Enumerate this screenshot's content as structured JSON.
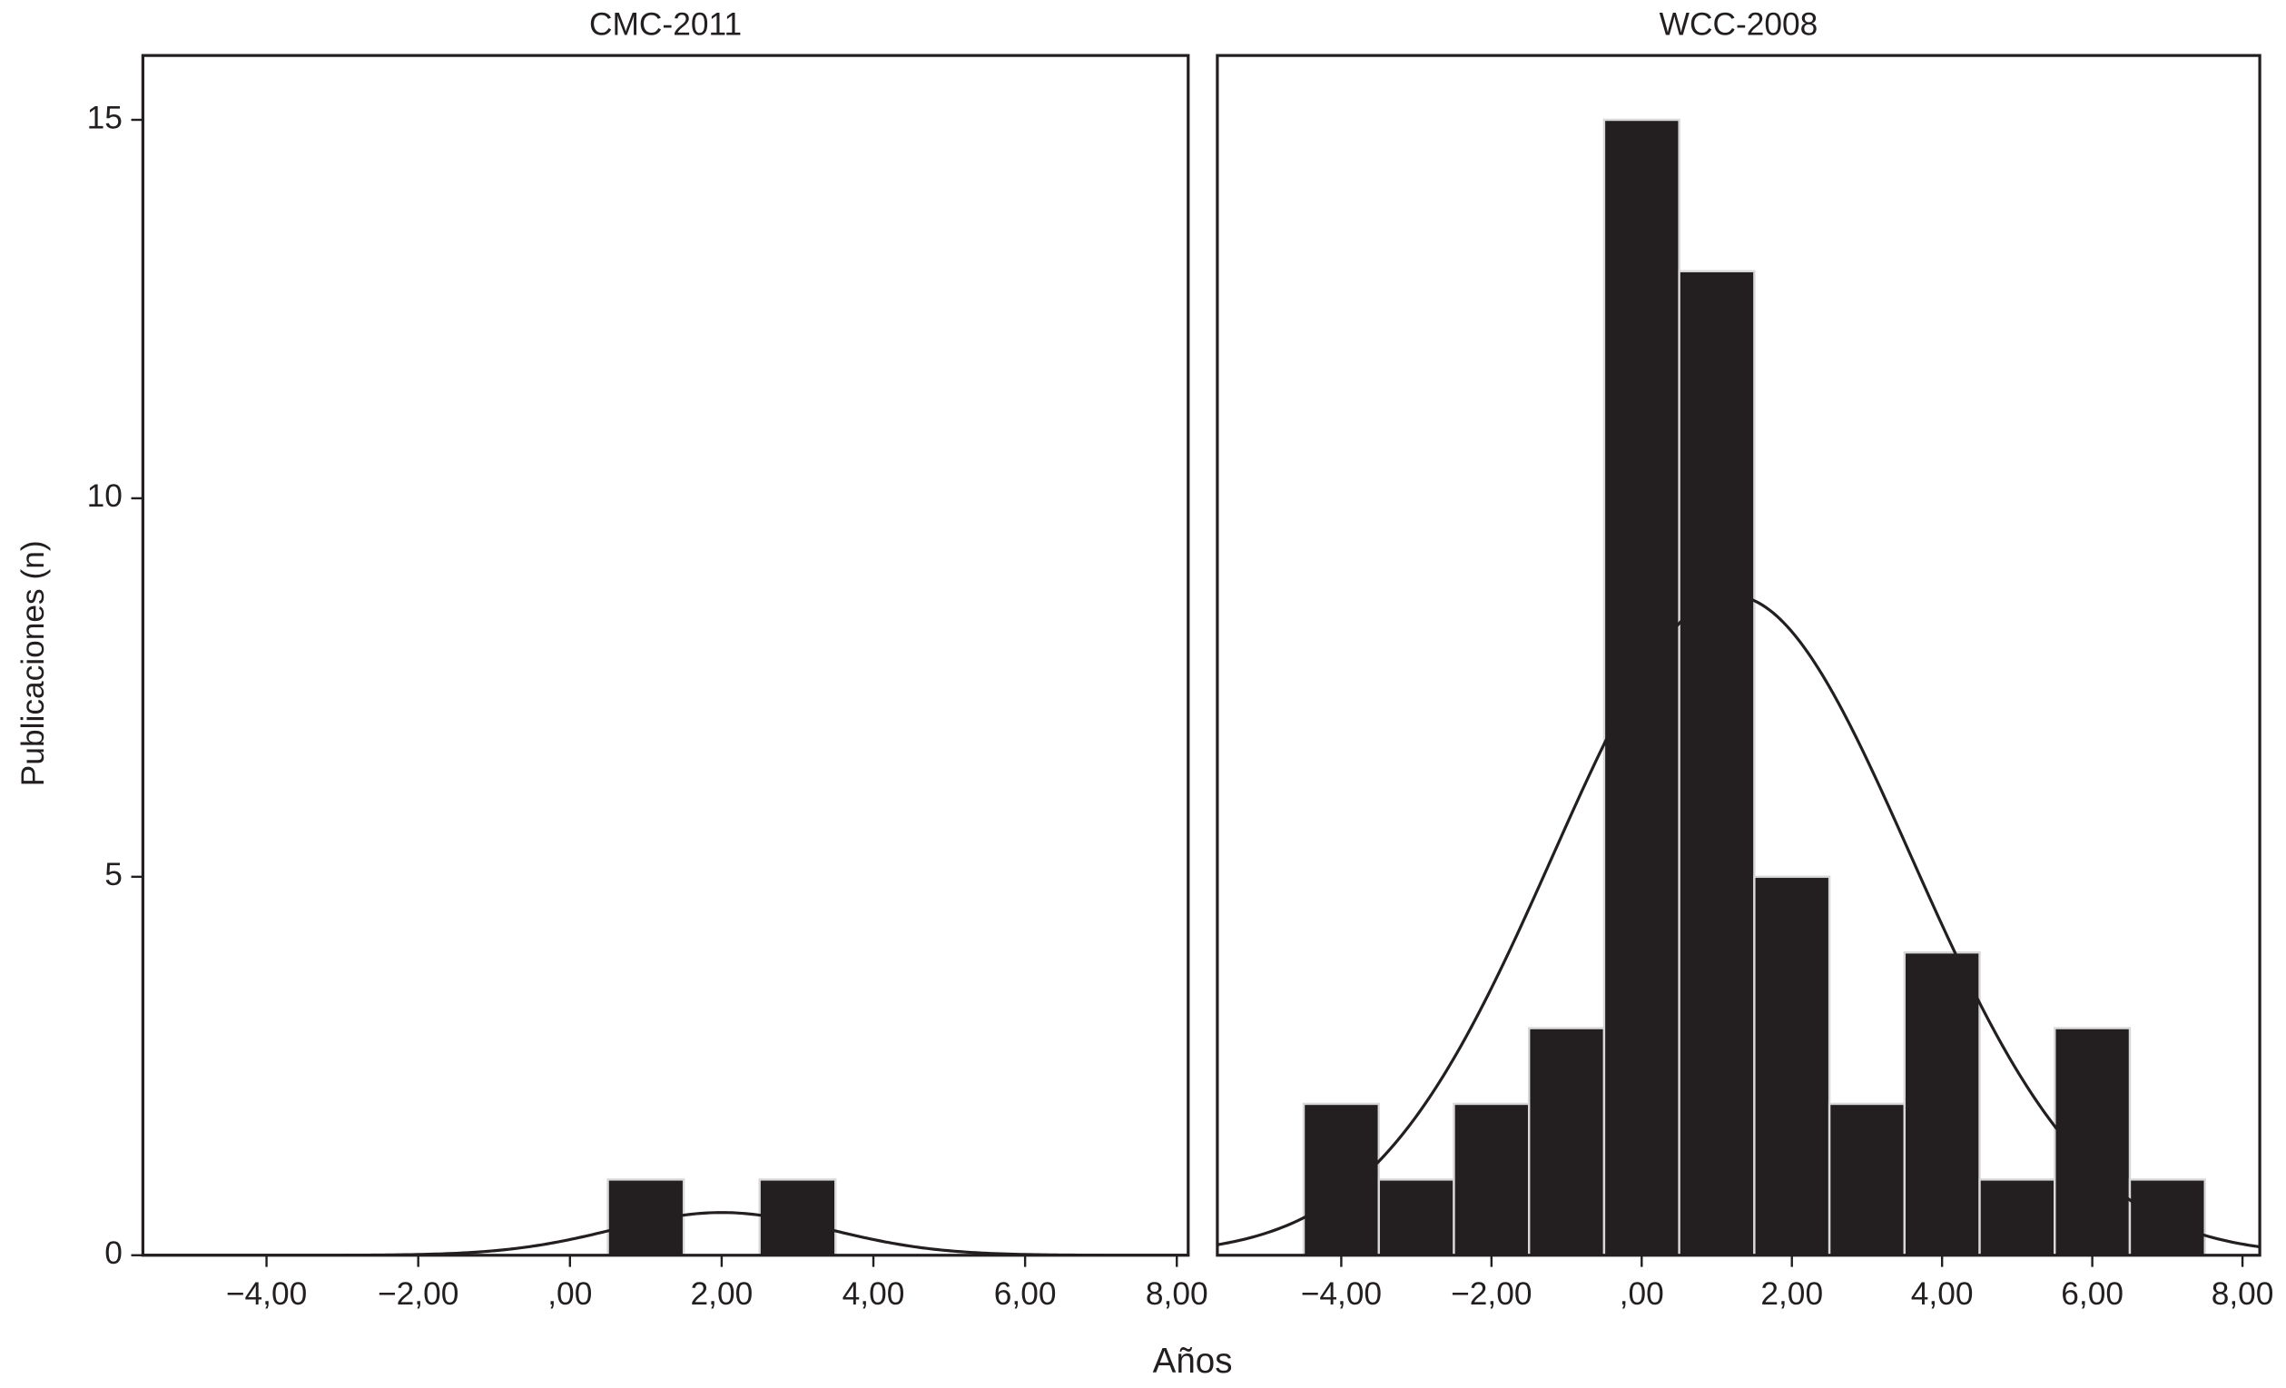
{
  "chart_data": [
    {
      "type": "histogram",
      "title": "CMC-2011",
      "ylabel": "Publicaciones (n)",
      "xlabel": "Años",
      "bins": [
        0.5,
        1.5,
        2.5,
        3.5
      ],
      "counts": [
        1,
        0,
        1
      ],
      "color": "#231f20",
      "normal_curve": {
        "mean": 2,
        "sd": 1.414,
        "n": 2
      },
      "xlim": [
        -5.63,
        8.15
      ],
      "ylim": [
        0,
        15.85
      ],
      "xticks": [
        {
          "value": -4,
          "label": "−4,00"
        },
        {
          "value": -2,
          "label": "−2,00"
        },
        {
          "value": 0,
          "label": ",00"
        },
        {
          "value": 2,
          "label": "2,00"
        },
        {
          "value": 4,
          "label": "4,00"
        },
        {
          "value": 6,
          "label": "6,00"
        },
        {
          "value": 8,
          "label": "8,00"
        }
      ],
      "yticks": [
        0,
        5,
        10,
        15
      ]
    },
    {
      "type": "histogram",
      "title": "WCC-2008",
      "bins": [
        -4.5,
        -3.5,
        -2.5,
        -1.5,
        -0.5,
        0.5,
        1.5,
        2.5,
        3.5,
        4.5,
        5.5,
        6.5,
        7.5
      ],
      "counts": [
        2,
        1,
        2,
        3,
        15,
        13,
        5,
        2,
        4,
        1,
        3,
        1
      ],
      "color": "#231f20",
      "normal_curve": {
        "mean": 1.2,
        "sd": 2.38,
        "n": 52
      },
      "xlim": [
        -5.65,
        8.23
      ],
      "ylim": [
        0,
        15.85
      ],
      "xticks": [
        {
          "value": -4,
          "label": "−4,00"
        },
        {
          "value": -2,
          "label": "−2,00"
        },
        {
          "value": 0,
          "label": ",00"
        },
        {
          "value": 2,
          "label": "2,00"
        },
        {
          "value": 4,
          "label": "4,00"
        },
        {
          "value": 6,
          "label": "6,00"
        },
        {
          "value": 8,
          "label": "8,00"
        }
      ]
    }
  ]
}
